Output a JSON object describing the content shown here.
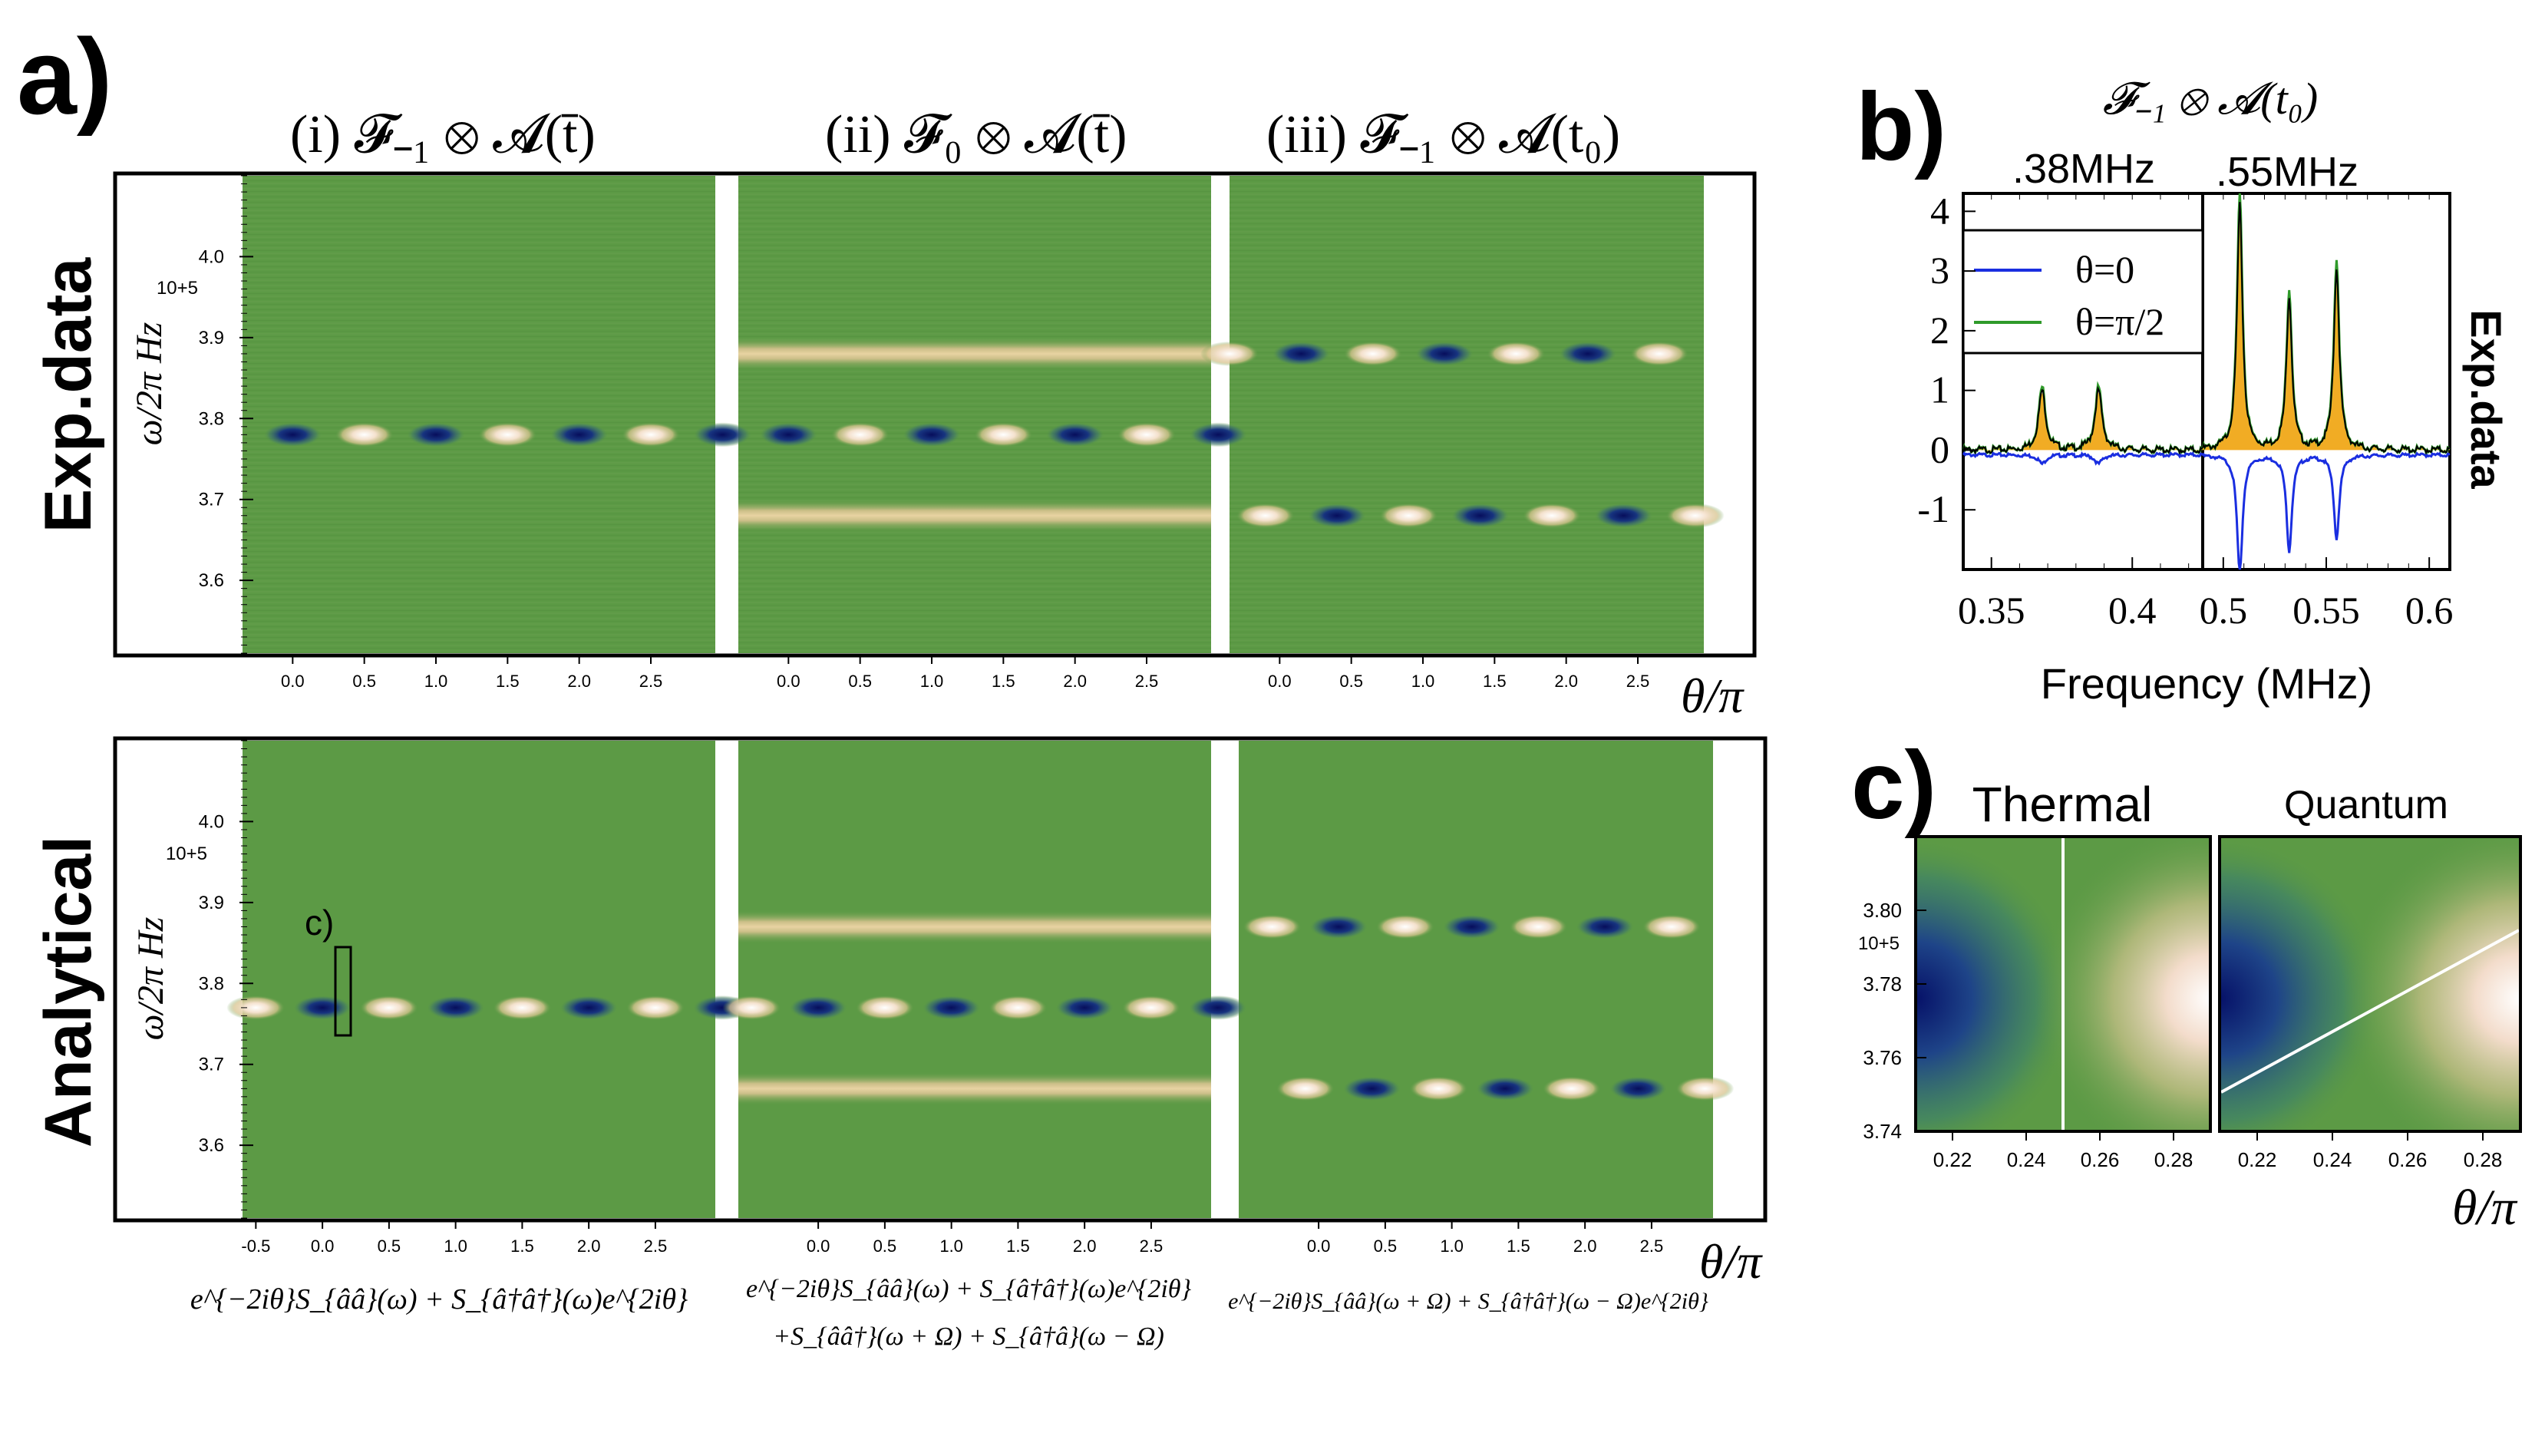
{
  "colors": {
    "background_green": "#5c9a45",
    "dark_blue": "#0b1570",
    "cream": "#e6cf9c",
    "white_peak": "#fff6ea",
    "spectrum_blue": "#1a2ee0",
    "spectrum_green": "#2f9a2a",
    "fill_orange": "#f0a818",
    "frame": "#000000"
  },
  "panel_labels": {
    "a": "a)",
    "b": "b)",
    "c": "c)"
  },
  "row_labels": {
    "exp": "Exp.data",
    "analytical": "Analytical"
  },
  "chart_data": [
    {
      "type": "heatmap",
      "id": "a-exp",
      "row_label": "Exp.data",
      "ylabel": "ω/2π  Hz",
      "y_exponent": "10+5",
      "yticks": [
        "4.0",
        "3.9",
        "3.8",
        "3.7",
        "3.6"
      ],
      "ytick_values": [
        4.0,
        3.9,
        3.8,
        3.7,
        3.6
      ],
      "ylim": [
        3.51,
        4.1
      ],
      "xlabel": "θ/π",
      "xlim": [
        -0.35,
        2.95
      ],
      "subpanels": [
        {
          "title": "(i)  𝓕₋₁ ⊗ 𝓐(t̄)",
          "xticks": [
            "0.0",
            "0.5",
            "1.0",
            "1.5",
            "2.0",
            "2.5"
          ],
          "xtick_values": [
            0,
            0.5,
            1,
            1.5,
            2,
            2.5
          ],
          "lines_y": [
            3.78
          ],
          "band_y": [],
          "variant": "center"
        },
        {
          "title": "(ii)  𝓕₀ ⊗ 𝓐(t̄)",
          "xticks": [
            "0.0",
            "0.5",
            "1.0",
            "1.5",
            "2.0",
            "2.5"
          ],
          "xtick_values": [
            0,
            0.5,
            1,
            1.5,
            2,
            2.5
          ],
          "lines_y": [
            3.78
          ],
          "band_y": [
            3.88,
            3.68
          ],
          "variant": "center"
        },
        {
          "title": "(iii) 𝓕₋₁ ⊗ 𝓐(t₀)",
          "xticks": [
            "0.0",
            "0.5",
            "1.0",
            "1.5",
            "2.0",
            "2.5"
          ],
          "xtick_values": [
            0,
            0.5,
            1,
            1.5,
            2,
            2.5
          ],
          "lines_y": [
            3.88,
            3.68
          ],
          "band_y": [],
          "variant": "sidebands"
        }
      ]
    },
    {
      "type": "heatmap",
      "id": "a-analytical",
      "row_label": "Analytical",
      "ylabel": "ω/2π  Hz",
      "y_exponent": "10+5",
      "yticks": [
        "4.0",
        "3.9",
        "3.8",
        "3.7",
        "3.6"
      ],
      "ytick_values": [
        4.0,
        3.9,
        3.8,
        3.7,
        3.6
      ],
      "ylim": [
        3.51,
        4.1
      ],
      "xlabel": "θ/π",
      "xlim": [
        -0.6,
        2.95
      ],
      "inset_label": "c)",
      "subpanels": [
        {
          "xticks": [
            "-0.5",
            "0.0",
            "0.5",
            "1.0",
            "1.5",
            "2.0",
            "2.5"
          ],
          "xtick_values": [
            -0.5,
            0,
            0.5,
            1,
            1.5,
            2,
            2.5
          ],
          "lines_y": [
            3.77
          ],
          "band_y": [],
          "variant": "center",
          "formula": [
            "e^{−2iθ}S_{ââ}(ω) + S_{â†â†}(ω)e^{2iθ}"
          ]
        },
        {
          "xticks": [
            "0.0",
            "0.5",
            "1.0",
            "1.5",
            "2.0",
            "2.5"
          ],
          "xtick_values": [
            0,
            0.5,
            1,
            1.5,
            2,
            2.5
          ],
          "lines_y": [
            3.77
          ],
          "band_y": [
            3.87,
            3.67
          ],
          "variant": "center",
          "formula": [
            "e^{−2iθ}S_{ââ}(ω) + S_{â†â†}(ω)e^{2iθ}",
            "+S_{ââ†}(ω + Ω) + S_{â†â}(ω − Ω)"
          ]
        },
        {
          "xticks": [
            "0.0",
            "0.5",
            "1.0",
            "1.5",
            "2.0",
            "2.5"
          ],
          "xtick_values": [
            0,
            0.5,
            1,
            1.5,
            2,
            2.5
          ],
          "lines_y": [
            3.87,
            3.67
          ],
          "band_y": [],
          "variant": "sidebands",
          "formula": [
            "e^{−2iθ}S_{ââ}(ω + Ω) + S_{â†â†}(ω − Ω)e^{2iθ}"
          ]
        }
      ]
    },
    {
      "type": "line",
      "id": "b",
      "title": "𝓕₋₁ ⊗ 𝓐(t₀)",
      "side_label": "Exp.data",
      "xlabel": "Frequency (MHz)",
      "ylim": [
        -2,
        4.3
      ],
      "yticks": [
        "4",
        "3",
        "2",
        "1",
        "0",
        "-1"
      ],
      "ytick_values": [
        4,
        3,
        2,
        1,
        0,
        -1
      ],
      "legend": [
        {
          "name": "θ=0",
          "color": "#1a2ee0"
        },
        {
          "name": "θ=π/2",
          "color": "#2f9a2a"
        }
      ],
      "legend_position": "top-left",
      "subpanels": [
        {
          "title": ".38MHz",
          "xlim": [
            0.34,
            0.425
          ],
          "xticks": [
            "0.35",
            "0.4"
          ],
          "xtick_values": [
            0.35,
            0.4
          ],
          "peaks": [
            {
              "x": 0.368,
              "green": 1.05,
              "blue": -0.15
            },
            {
              "x": 0.388,
              "green": 1.05,
              "blue": -0.15
            }
          ]
        },
        {
          "title": ".55MHz",
          "xlim": [
            0.49,
            0.61
          ],
          "xticks": [
            "0.5",
            "0.55",
            "0.6"
          ],
          "xtick_values": [
            0.5,
            0.55,
            0.6
          ],
          "peaks": [
            {
              "x": 0.508,
              "green": 4.3,
              "blue": -2.0
            },
            {
              "x": 0.532,
              "green": 2.7,
              "blue": -1.6
            },
            {
              "x": 0.555,
              "green": 3.2,
              "blue": -1.4
            }
          ]
        }
      ]
    },
    {
      "type": "heatmap",
      "id": "c",
      "xlabel": "θ/π",
      "y_exponent": "10+5",
      "yticks": [
        "3.80",
        "3.78",
        "3.76",
        "3.74"
      ],
      "ytick_values": [
        3.8,
        3.78,
        3.76,
        3.74
      ],
      "ylim": [
        3.74,
        3.82
      ],
      "xlim": [
        0.21,
        0.29
      ],
      "subpanels": [
        {
          "title": "Thermal",
          "xticks": [
            "0.22",
            "0.24",
            "0.26",
            "0.28"
          ],
          "xtick_values": [
            0.22,
            0.24,
            0.26,
            0.28
          ],
          "divider": "vertical at θ/π = 0.25"
        },
        {
          "title": "Quantum",
          "xticks": [
            "0.22",
            "0.24",
            "0.26",
            "0.28"
          ],
          "xtick_values": [
            0.22,
            0.24,
            0.26,
            0.28
          ],
          "divider": "diagonal"
        }
      ]
    }
  ]
}
